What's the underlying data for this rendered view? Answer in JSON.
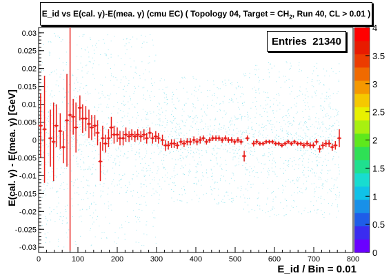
{
  "title": {
    "pre": "E_id vs E(cal. γ)-E(mea. γ) (cmu EC) ( Topology 04, Target = CH",
    "sub": "2",
    "post": ", Run 40, CL > 0.01 )"
  },
  "stats": {
    "label": "Entries",
    "value": "21340"
  },
  "chart_data": {
    "type": "scatter",
    "title": "E_id vs E(cal. γ)-E(mea. γ) (cmu EC) ( Topology 04, Target = CH2, Run 40, CL > 0.01 )",
    "xlabel": "E_id / Bin = 0.01",
    "ylabel": "E(cal. γ) - E(mea. γ) [GeV]",
    "xlim": [
      0,
      800
    ],
    "ylim": [
      -0.0315,
      0.0315
    ],
    "x_ticks": [
      "0",
      "100",
      "200",
      "300",
      "400",
      "500",
      "600",
      "700",
      "800"
    ],
    "y_ticks": [
      "-0.03",
      "-0.025",
      "-0.02",
      "-0.015",
      "-0.01",
      "-0.005",
      "0",
      "0.005",
      "0.01",
      "0.015",
      "0.02",
      "0.025",
      "0.03"
    ],
    "colorbar_ticks": [
      "0",
      "0.5",
      "1",
      "1.5",
      "2",
      "2.5",
      "3",
      "3.5",
      "4"
    ],
    "colorbar_range": [
      0,
      4
    ],
    "grid": false,
    "background_scatter_color": "#8fe3ee",
    "profile_color": "#e8201c",
    "profile": [
      {
        "x": 5,
        "y": 0.004,
        "err": 0.009
      },
      {
        "x": 15,
        "y": 0.003,
        "err": 0.015
      },
      {
        "x": 30,
        "y": 0.0005,
        "err": 0.008
      },
      {
        "x": 38,
        "y": -0.0005,
        "err": 0.011
      },
      {
        "x": 45,
        "y": 0.004,
        "err": 0.006
      },
      {
        "x": 55,
        "y": 0.0025,
        "err": 0.005
      },
      {
        "x": 63,
        "y": -0.002,
        "err": 0.0045
      },
      {
        "x": 72,
        "y": 0.0055,
        "err": 0.013
      },
      {
        "x": 80,
        "y": 0.007,
        "err": 0.038
      },
      {
        "x": 88,
        "y": 0.0065,
        "err": 0.005
      },
      {
        "x": 95,
        "y": 0.0035,
        "err": 0.007
      },
      {
        "x": 105,
        "y": 0.009,
        "err": 0.0035
      },
      {
        "x": 112,
        "y": 0.006,
        "err": 0.004
      },
      {
        "x": 120,
        "y": 0.006,
        "err": 0.0035
      },
      {
        "x": 128,
        "y": 0.0045,
        "err": 0.004
      },
      {
        "x": 135,
        "y": 0.0035,
        "err": 0.0035
      },
      {
        "x": 143,
        "y": 0.004,
        "err": 0.003
      },
      {
        "x": 150,
        "y": 0.002,
        "err": 0.0035
      },
      {
        "x": 157,
        "y": -0.006,
        "err": 0.0055
      },
      {
        "x": 163,
        "y": 0.0005,
        "err": 0.0035
      },
      {
        "x": 170,
        "y": -0.001,
        "err": 0.0025
      },
      {
        "x": 178,
        "y": 0.0005,
        "err": 0.0025
      },
      {
        "x": 185,
        "y": 0.0035,
        "err": 0.003
      },
      {
        "x": 192,
        "y": 0.0015,
        "err": 0.0025
      },
      {
        "x": 200,
        "y": 0.0015,
        "err": 0.002
      },
      {
        "x": 207,
        "y": 0.0005,
        "err": 0.002
      },
      {
        "x": 215,
        "y": 0.0005,
        "err": 0.002
      },
      {
        "x": 222,
        "y": 0.0015,
        "err": 0.002
      },
      {
        "x": 230,
        "y": 0.001,
        "err": 0.0015
      },
      {
        "x": 237,
        "y": 0.0015,
        "err": 0.0015
      },
      {
        "x": 245,
        "y": 0.001,
        "err": 0.0015
      },
      {
        "x": 252,
        "y": 0.0015,
        "err": 0.0015
      },
      {
        "x": 260,
        "y": 0.001,
        "err": 0.0015
      },
      {
        "x": 268,
        "y": 0.0015,
        "err": 0.0015
      },
      {
        "x": 275,
        "y": 0.0005,
        "err": 0.0015
      },
      {
        "x": 283,
        "y": 0.002,
        "err": 0.0015
      },
      {
        "x": 290,
        "y": 0.0005,
        "err": 0.0015
      },
      {
        "x": 298,
        "y": 0.001,
        "err": 0.0015
      },
      {
        "x": 305,
        "y": 0.0005,
        "err": 0.0015
      },
      {
        "x": 315,
        "y": 0.0,
        "err": 0.0015
      },
      {
        "x": 323,
        "y": -0.0015,
        "err": 0.0015
      },
      {
        "x": 330,
        "y": -0.0015,
        "err": 0.0012
      },
      {
        "x": 338,
        "y": -0.001,
        "err": 0.0012
      },
      {
        "x": 345,
        "y": -0.001,
        "err": 0.0012
      },
      {
        "x": 353,
        "y": -0.0015,
        "err": 0.001
      },
      {
        "x": 362,
        "y": -0.0005,
        "err": 0.001
      },
      {
        "x": 370,
        "y": -0.001,
        "err": 0.001
      },
      {
        "x": 378,
        "y": -0.0005,
        "err": 0.001
      },
      {
        "x": 386,
        "y": -0.0005,
        "err": 0.001
      },
      {
        "x": 395,
        "y": 0.0,
        "err": 0.001
      },
      {
        "x": 403,
        "y": -0.0005,
        "err": 0.001
      },
      {
        "x": 411,
        "y": 0.0,
        "err": 0.001
      },
      {
        "x": 419,
        "y": 0.0005,
        "err": 0.0008
      },
      {
        "x": 427,
        "y": -0.0005,
        "err": 0.0008
      },
      {
        "x": 435,
        "y": 0.0,
        "err": 0.0008
      },
      {
        "x": 443,
        "y": 0.0005,
        "err": 0.0008
      },
      {
        "x": 451,
        "y": 0.0005,
        "err": 0.0008
      },
      {
        "x": 459,
        "y": 0.0005,
        "err": 0.0008
      },
      {
        "x": 467,
        "y": 0.0,
        "err": 0.0008
      },
      {
        "x": 475,
        "y": 0.0005,
        "err": 0.0008
      },
      {
        "x": 483,
        "y": 0.0,
        "err": 0.0008
      },
      {
        "x": 491,
        "y": 0.0,
        "err": 0.0008
      },
      {
        "x": 499,
        "y": -0.0005,
        "err": 0.0008
      },
      {
        "x": 507,
        "y": 0.0,
        "err": 0.0008
      },
      {
        "x": 515,
        "y": -0.0005,
        "err": 0.0008
      },
      {
        "x": 523,
        "y": -0.0045,
        "err": 0.0015
      },
      {
        "x": 531,
        "y": 0.0005,
        "err": 0.0008
      },
      {
        "x": 547,
        "y": -0.001,
        "err": 0.0008
      },
      {
        "x": 555,
        "y": -0.0005,
        "err": 0.0008
      },
      {
        "x": 563,
        "y": -0.001,
        "err": 0.0006
      },
      {
        "x": 571,
        "y": -0.001,
        "err": 0.0006
      },
      {
        "x": 579,
        "y": -0.0005,
        "err": 0.0006
      },
      {
        "x": 587,
        "y": -0.0005,
        "err": 0.0006
      },
      {
        "x": 595,
        "y": -0.0005,
        "err": 0.0006
      },
      {
        "x": 603,
        "y": -0.001,
        "err": 0.0006
      },
      {
        "x": 611,
        "y": -0.001,
        "err": 0.0006
      },
      {
        "x": 619,
        "y": -0.0015,
        "err": 0.0006
      },
      {
        "x": 627,
        "y": -0.001,
        "err": 0.0006
      },
      {
        "x": 635,
        "y": -0.0005,
        "err": 0.0006
      },
      {
        "x": 643,
        "y": -0.001,
        "err": 0.0006
      },
      {
        "x": 651,
        "y": -0.0005,
        "err": 0.0006
      },
      {
        "x": 659,
        "y": -0.001,
        "err": 0.0006
      },
      {
        "x": 667,
        "y": -0.001,
        "err": 0.0006
      },
      {
        "x": 675,
        "y": -0.0015,
        "err": 0.0008
      },
      {
        "x": 683,
        "y": -0.001,
        "err": 0.0008
      },
      {
        "x": 691,
        "y": -0.0015,
        "err": 0.0008
      },
      {
        "x": 699,
        "y": -0.0015,
        "err": 0.0008
      },
      {
        "x": 707,
        "y": -0.0005,
        "err": 0.0008
      },
      {
        "x": 715,
        "y": -0.0025,
        "err": 0.001
      },
      {
        "x": 723,
        "y": -0.0015,
        "err": 0.001
      },
      {
        "x": 731,
        "y": -0.001,
        "err": 0.001
      },
      {
        "x": 739,
        "y": -0.001,
        "err": 0.001
      },
      {
        "x": 747,
        "y": -0.002,
        "err": 0.001
      },
      {
        "x": 755,
        "y": -0.0015,
        "err": 0.0012
      },
      {
        "x": 765,
        "y": 0.0005,
        "err": 0.0025
      }
    ]
  }
}
